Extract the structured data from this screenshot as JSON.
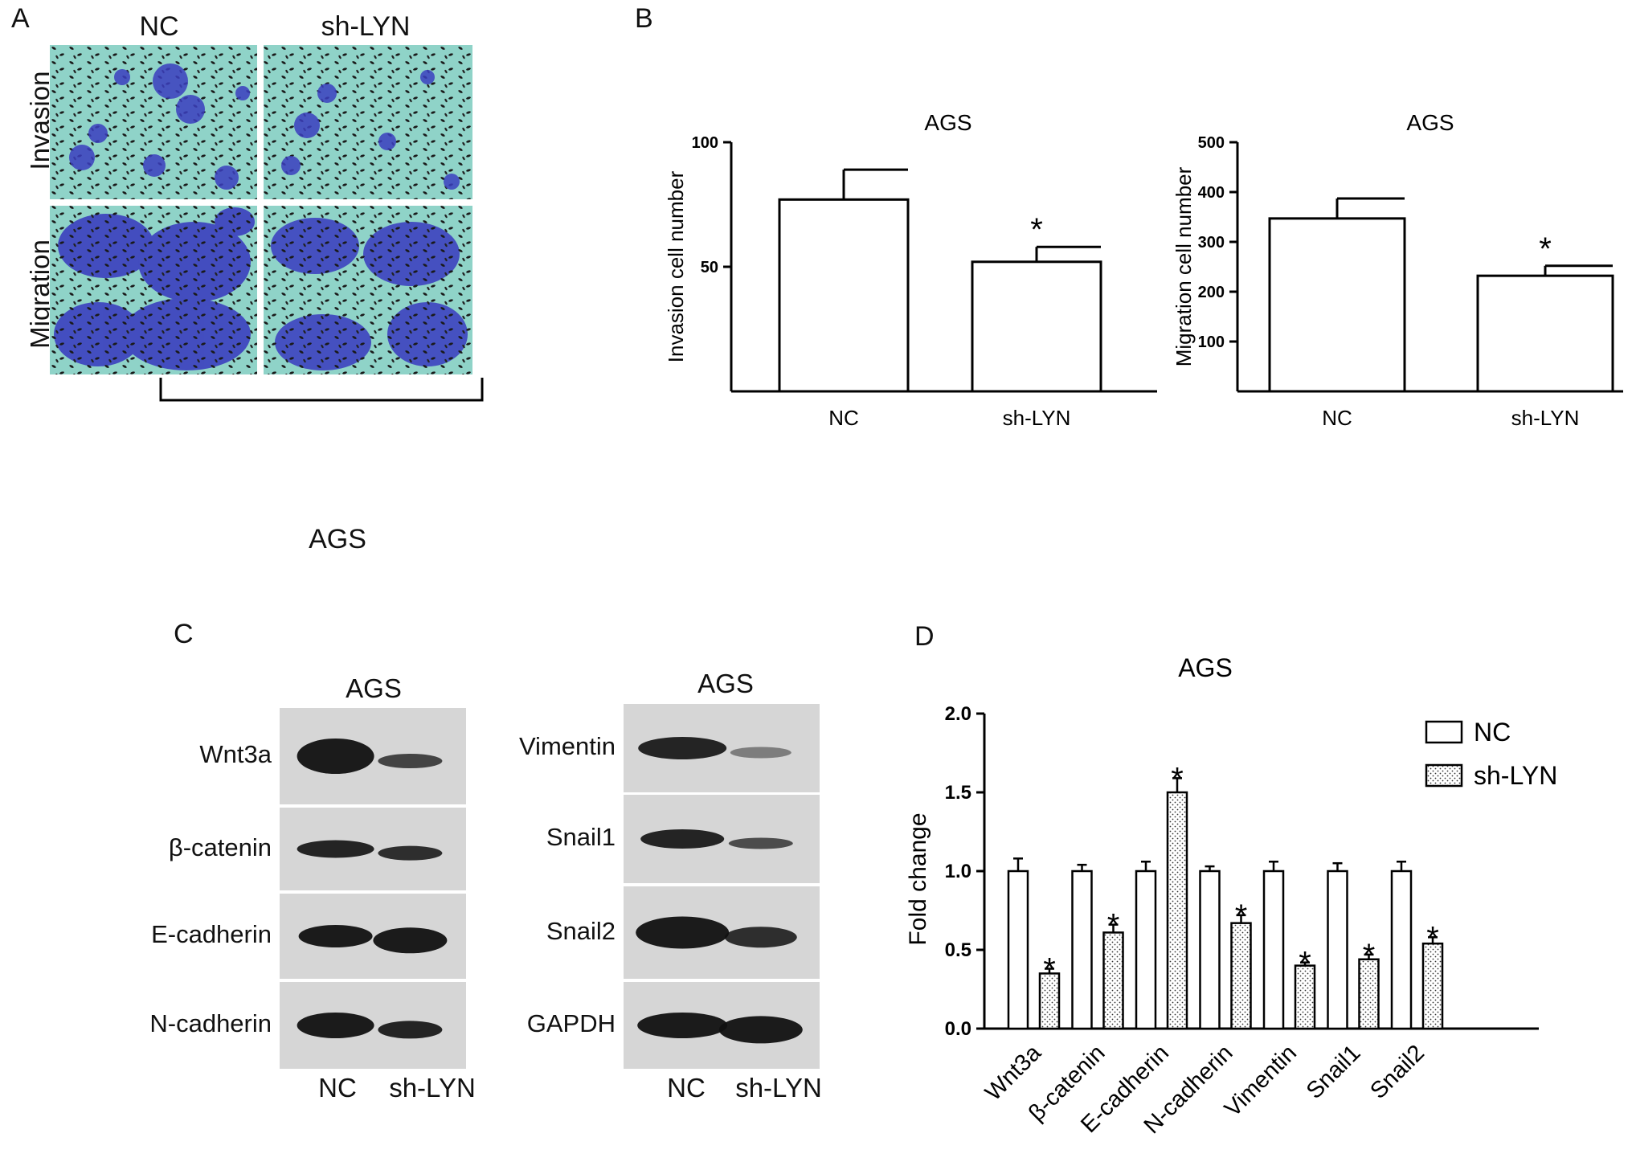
{
  "panels": {
    "a": "A",
    "b": "B",
    "c": "C",
    "d": "D"
  },
  "panel_a": {
    "columns": [
      "NC",
      "sh-LYN"
    ],
    "rows": [
      "Invasion",
      "Migration"
    ],
    "group_label": "AGS"
  },
  "colors": {
    "cell_stain": "#3b3fbf",
    "membrane": "#8fd3c8",
    "bar_fill": "#ffffff",
    "axis": "#000000"
  },
  "chart_data": [
    {
      "type": "bar",
      "title": "AGS",
      "ylabel": "Invasion cell number",
      "categories": [
        "NC",
        "sh-LYN"
      ],
      "values": [
        77,
        52
      ],
      "errors": [
        12,
        6
      ],
      "significance": [
        "",
        "*"
      ],
      "yticks": [
        "50",
        "100"
      ],
      "ylim": [
        0,
        100
      ]
    },
    {
      "type": "bar",
      "title": "AGS",
      "ylabel": "Migration cell number",
      "categories": [
        "NC",
        "sh-LYN"
      ],
      "values": [
        347,
        232
      ],
      "errors": [
        40,
        20
      ],
      "significance": [
        "",
        "*"
      ],
      "yticks": [
        "100",
        "200",
        "300",
        "400",
        "500"
      ],
      "ylim": [
        0,
        500
      ]
    },
    {
      "type": "bar",
      "title": "AGS",
      "ylabel": "Fold change",
      "categories": [
        "Wnt3a",
        "β-catenin",
        "E-cadherin",
        "N-cadherin",
        "Vimentin",
        "Snail1",
        "Snail2"
      ],
      "series": [
        {
          "name": "NC",
          "values": [
            1.0,
            1.0,
            1.0,
            1.0,
            1.0,
            1.0,
            1.0
          ],
          "errors": [
            0.08,
            0.04,
            0.06,
            0.03,
            0.06,
            0.05,
            0.06
          ]
        },
        {
          "name": "sh-LYN",
          "values": [
            0.35,
            0.61,
            1.5,
            0.67,
            0.4,
            0.44,
            0.54
          ],
          "errors": [
            0.03,
            0.05,
            0.09,
            0.05,
            0.02,
            0.03,
            0.04
          ]
        }
      ],
      "significance": "*",
      "yticks": [
        "0.0",
        "0.5",
        "1.0",
        "1.5",
        "2.0"
      ],
      "ylim": [
        0,
        2.0
      ],
      "legend_position": "top-right"
    }
  ],
  "panel_c": {
    "title_left": "AGS",
    "title_right": "AGS",
    "markers_left": [
      "Wnt3a",
      "β-catenin",
      "E-cadherin",
      "N-cadherin"
    ],
    "markers_right": [
      "Vimentin",
      "Snail1",
      "Snail2",
      "GAPDH"
    ],
    "lanes_left": [
      "NC",
      "sh-LYN"
    ],
    "lanes_right": [
      "NC",
      "sh-LYN"
    ]
  }
}
